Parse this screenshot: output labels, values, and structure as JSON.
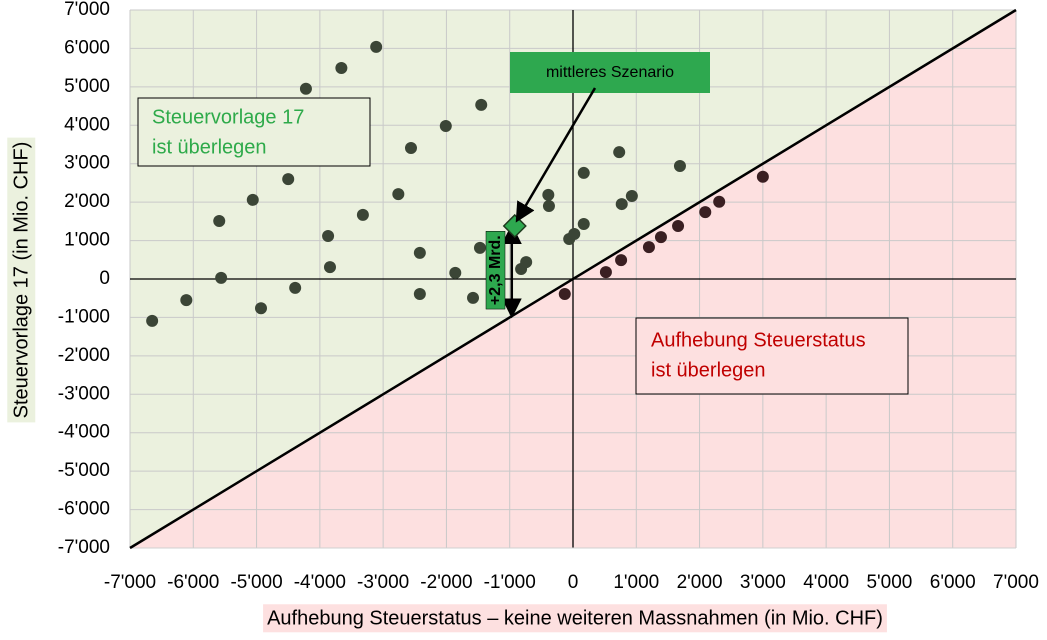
{
  "chart_data": {
    "type": "scatter",
    "x_label": "Aufhebung Steuerstatus – keine weiteren Massnahmen (in Mio. CHF)",
    "y_label": "Steuervorlage 17 (in Mio. CHF)",
    "xlim": [
      -7000,
      7000
    ],
    "ylim": [
      -7000,
      7000
    ],
    "xticks": [
      {
        "value": -7000,
        "label": "-7'000"
      },
      {
        "value": -6000,
        "label": "-6'000"
      },
      {
        "value": -5000,
        "label": "-5'000"
      },
      {
        "value": -4000,
        "label": "-4'000"
      },
      {
        "value": -3000,
        "label": "-3'000"
      },
      {
        "value": -2000,
        "label": "-2'000"
      },
      {
        "value": -1000,
        "label": "-1'000"
      },
      0,
      {
        "value": 1000,
        "label": "1'000"
      },
      {
        "value": 2000,
        "label": "2'000"
      },
      {
        "value": 3000,
        "label": "3'000"
      },
      {
        "value": 4000,
        "label": "4'000"
      },
      {
        "value": 5000,
        "label": "5'000"
      },
      {
        "value": 6000,
        "label": "6'000"
      },
      {
        "value": 7000,
        "label": "7'000"
      }
    ],
    "yticks": [
      {
        "value": -7000,
        "label": "-7'000"
      },
      {
        "value": -6000,
        "label": "-6'000"
      },
      {
        "value": -5000,
        "label": "-5'000"
      },
      {
        "value": -4000,
        "label": "-4'000"
      },
      {
        "value": -3000,
        "label": "-3'000"
      },
      {
        "value": -2000,
        "label": "-2'000"
      },
      {
        "value": -1000,
        "label": "-1'000"
      },
      0,
      {
        "value": 1000,
        "label": "1'000"
      },
      {
        "value": 2000,
        "label": "2'000"
      },
      {
        "value": 3000,
        "label": "3'000"
      },
      {
        "value": 4000,
        "label": "4'000"
      },
      {
        "value": 5000,
        "label": "5'000"
      },
      {
        "value": 6000,
        "label": "6'000"
      },
      {
        "value": 7000,
        "label": "7'000"
      }
    ],
    "grid": true,
    "x": [
      -6650,
      -6110,
      -5590,
      -5560,
      -5060,
      -4930,
      -4500,
      -4390,
      -4220,
      -3870,
      -3840,
      -3660,
      -3320,
      -3110,
      -2760,
      -2560,
      -2420,
      -2420,
      -2010,
      -1860,
      -1580,
      -1450,
      -1470,
      -820,
      -740,
      -390,
      -380,
      -130,
      -60,
      20,
      170,
      170,
      520,
      730,
      760,
      770,
      930,
      1200,
      1390,
      1660,
      1690,
      2090,
      2310,
      3000
    ],
    "y": [
      -1090,
      -550,
      1510,
      30,
      2060,
      -760,
      2600,
      -230,
      4950,
      1120,
      310,
      5490,
      1670,
      6040,
      2210,
      3410,
      680,
      -390,
      3980,
      160,
      -490,
      4530,
      810,
      260,
      440,
      2190,
      1900,
      -390,
      1040,
      1170,
      2760,
      1430,
      180,
      3300,
      490,
      1950,
      2160,
      830,
      1090,
      1380,
      2940,
      1740,
      2010,
      2660
    ],
    "color": "#3b4536",
    "color_below_line": "#3a1f22",
    "region_above_color": "#ebf1de",
    "region_below_color": "#fde0e0",
    "highlight": {
      "label": "mittleres Szenario",
      "x": -920,
      "y": 1380,
      "color": "#2ea84f",
      "difference_label": "+2,3 Mrd."
    },
    "region_above_label": [
      "Steuervorlage 17",
      "ist überlegen"
    ],
    "region_below_label": [
      "Aufhebung Steuerstatus",
      "ist überlegen"
    ]
  }
}
